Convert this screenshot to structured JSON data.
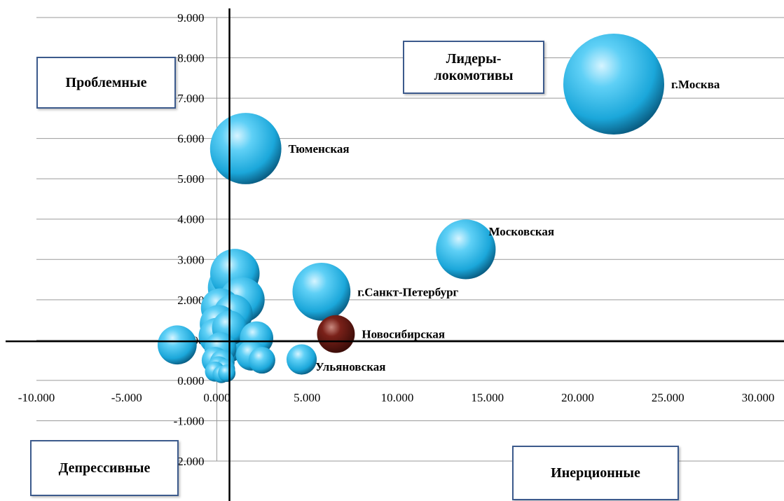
{
  "chart_data": {
    "type": "scatter",
    "title": "",
    "xlabel": "",
    "ylabel": "",
    "xlim": [
      -10,
      30
    ],
    "ylim": [
      -3,
      9
    ],
    "x_ticks": [
      "-10.000",
      "-5.000",
      "0.000",
      "5.000",
      "10.000",
      "15.000",
      "20.000",
      "25.000",
      "30.000"
    ],
    "y_ticks": [
      "9.000",
      "8.000",
      "7.000",
      "6.000",
      "5.000",
      "4.000",
      "3.000",
      "2.000",
      "1.000",
      "0.000",
      "-1.000",
      "-2.000"
    ],
    "grid": true,
    "reference_lines": {
      "x": 0.7,
      "y": 0.97
    },
    "quadrants": {
      "top_left": "Проблемные",
      "top_right": "Лидеры-\nлокомотивы",
      "bottom_left": "Депрессивные",
      "bottom_right": "Инерционные"
    },
    "points": [
      {
        "label": "г.Москва",
        "x": 22.0,
        "y": 7.35,
        "size": 1.0,
        "color": "#2fb4e6"
      },
      {
        "label": "Тюменская",
        "x": 1.6,
        "y": 5.75,
        "size": 0.5,
        "color": "#2fb4e6"
      },
      {
        "label": "Московская",
        "x": 13.8,
        "y": 3.25,
        "size": 0.35,
        "color": "#2fb4e6"
      },
      {
        "label": "г.Санкт-Петербург",
        "x": 5.8,
        "y": 2.2,
        "size": 0.33,
        "color": "#2fb4e6"
      },
      {
        "label": "Новосибирская",
        "x": 6.6,
        "y": 1.15,
        "size": 0.14,
        "color": "#6b1a14"
      },
      {
        "label": "Ульяновская",
        "x": 4.7,
        "y": 0.52,
        "size": 0.09,
        "color": "#2fb4e6"
      },
      {
        "label": "",
        "x": 1.0,
        "y": 2.65,
        "size": 0.24,
        "color": "#2fb4e6"
      },
      {
        "label": "",
        "x": 0.9,
        "y": 2.3,
        "size": 0.25,
        "color": "#2fb4e6"
      },
      {
        "label": "",
        "x": 1.4,
        "y": 2.0,
        "size": 0.2,
        "color": "#2fb4e6"
      },
      {
        "label": "",
        "x": 0.2,
        "y": 1.8,
        "size": 0.15,
        "color": "#2fb4e6"
      },
      {
        "label": "",
        "x": 0.9,
        "y": 1.65,
        "size": 0.15,
        "color": "#2fb4e6"
      },
      {
        "label": "",
        "x": 0.1,
        "y": 1.4,
        "size": 0.14,
        "color": "#2fb4e6"
      },
      {
        "label": "",
        "x": 0.7,
        "y": 1.3,
        "size": 0.12,
        "color": "#2fb4e6"
      },
      {
        "label": "",
        "x": 0.0,
        "y": 1.1,
        "size": 0.13,
        "color": "#2fb4e6"
      },
      {
        "label": "",
        "x": 0.6,
        "y": 0.95,
        "size": 0.16,
        "color": "#2fb4e6"
      },
      {
        "label": "",
        "x": -2.2,
        "y": 0.88,
        "size": 0.15,
        "color": "#2fb4e6"
      },
      {
        "label": "",
        "x": 0.2,
        "y": 0.8,
        "size": 0.1,
        "color": "#2fb4e6"
      },
      {
        "label": "",
        "x": 2.2,
        "y": 1.05,
        "size": 0.11,
        "color": "#2fb4e6"
      },
      {
        "label": "",
        "x": 1.9,
        "y": 0.62,
        "size": 0.09,
        "color": "#2fb4e6"
      },
      {
        "label": "",
        "x": 2.5,
        "y": 0.5,
        "size": 0.07,
        "color": "#2fb4e6"
      },
      {
        "label": "",
        "x": -0.1,
        "y": 0.5,
        "size": 0.07,
        "color": "#2fb4e6"
      },
      {
        "label": "",
        "x": 0.3,
        "y": 0.45,
        "size": 0.06,
        "color": "#2fb4e6"
      },
      {
        "label": "",
        "x": 0.1,
        "y": 0.32,
        "size": 0.05,
        "color": "#2fb4e6"
      },
      {
        "label": "",
        "x": 0.45,
        "y": 0.28,
        "size": 0.04,
        "color": "#2fb4e6"
      },
      {
        "label": "",
        "x": -0.1,
        "y": 0.22,
        "size": 0.04,
        "color": "#2fb4e6"
      },
      {
        "label": "",
        "x": 0.25,
        "y": 0.15,
        "size": 0.03,
        "color": "#2fb4e6"
      },
      {
        "label": "",
        "x": 0.55,
        "y": 0.18,
        "size": 0.03,
        "color": "#2fb4e6"
      }
    ]
  }
}
